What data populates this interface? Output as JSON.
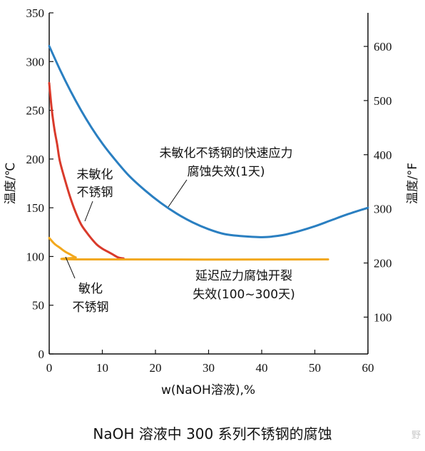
{
  "chart_data": {
    "type": "line",
    "xlabel": "w(NaOH溶液),%",
    "ylabel_left": "温度/℃",
    "ylabel_right": "温度/°F",
    "xlim": [
      0,
      60
    ],
    "ylim": [
      0,
      350
    ],
    "xticks": [
      0,
      10,
      20,
      30,
      40,
      50,
      60
    ],
    "yticks_left": [
      0,
      50,
      100,
      150,
      200,
      250,
      300,
      350
    ],
    "yticks_right": [
      100,
      200,
      300,
      400,
      500,
      600
    ],
    "series": [
      {
        "color": "#2a7fc1",
        "x": [
          0,
          2,
          4,
          6,
          8,
          10,
          12,
          15,
          18,
          21,
          24,
          27,
          30,
          33,
          36,
          39,
          41,
          44,
          47,
          50,
          53,
          56,
          60
        ],
        "y": [
          316,
          292,
          270,
          250,
          232,
          216,
          202,
          183,
          168,
          155,
          144,
          135,
          128,
          123,
          121,
          120,
          120,
          122,
          126,
          131,
          137,
          143,
          150
        ]
      },
      {
        "color": "#d93a2b",
        "x": [
          0,
          0.5,
          1,
          1.5,
          2,
          3,
          4,
          5,
          6,
          7,
          8,
          9,
          10,
          11,
          12,
          13,
          14
        ],
        "y": [
          278,
          250,
          230,
          215,
          198,
          178,
          160,
          145,
          133,
          125,
          118,
          112,
          108,
          105,
          102,
          99,
          98
        ]
      },
      {
        "color": "#f2a81d",
        "x": [
          0,
          1,
          2,
          3,
          4,
          5,
          6,
          52.5
        ],
        "y": [
          119,
          113,
          109,
          105,
          102,
          99,
          97,
          97
        ]
      }
    ],
    "annotations": {
      "blue_line1": "未敏化不锈钢的快速应力",
      "blue_line2": "腐蚀失效(1天)",
      "red_line1": "未敏化",
      "red_line2": "不锈钢",
      "orange_line1": "敏化",
      "orange_line2": "不锈钢",
      "flat_line1": "延迟应力腐蚀开裂",
      "flat_line2": "失效(100~300天)"
    }
  },
  "caption": "NaOH 溶液中 300 系列不锈钢的腐蚀",
  "watermark": "野"
}
